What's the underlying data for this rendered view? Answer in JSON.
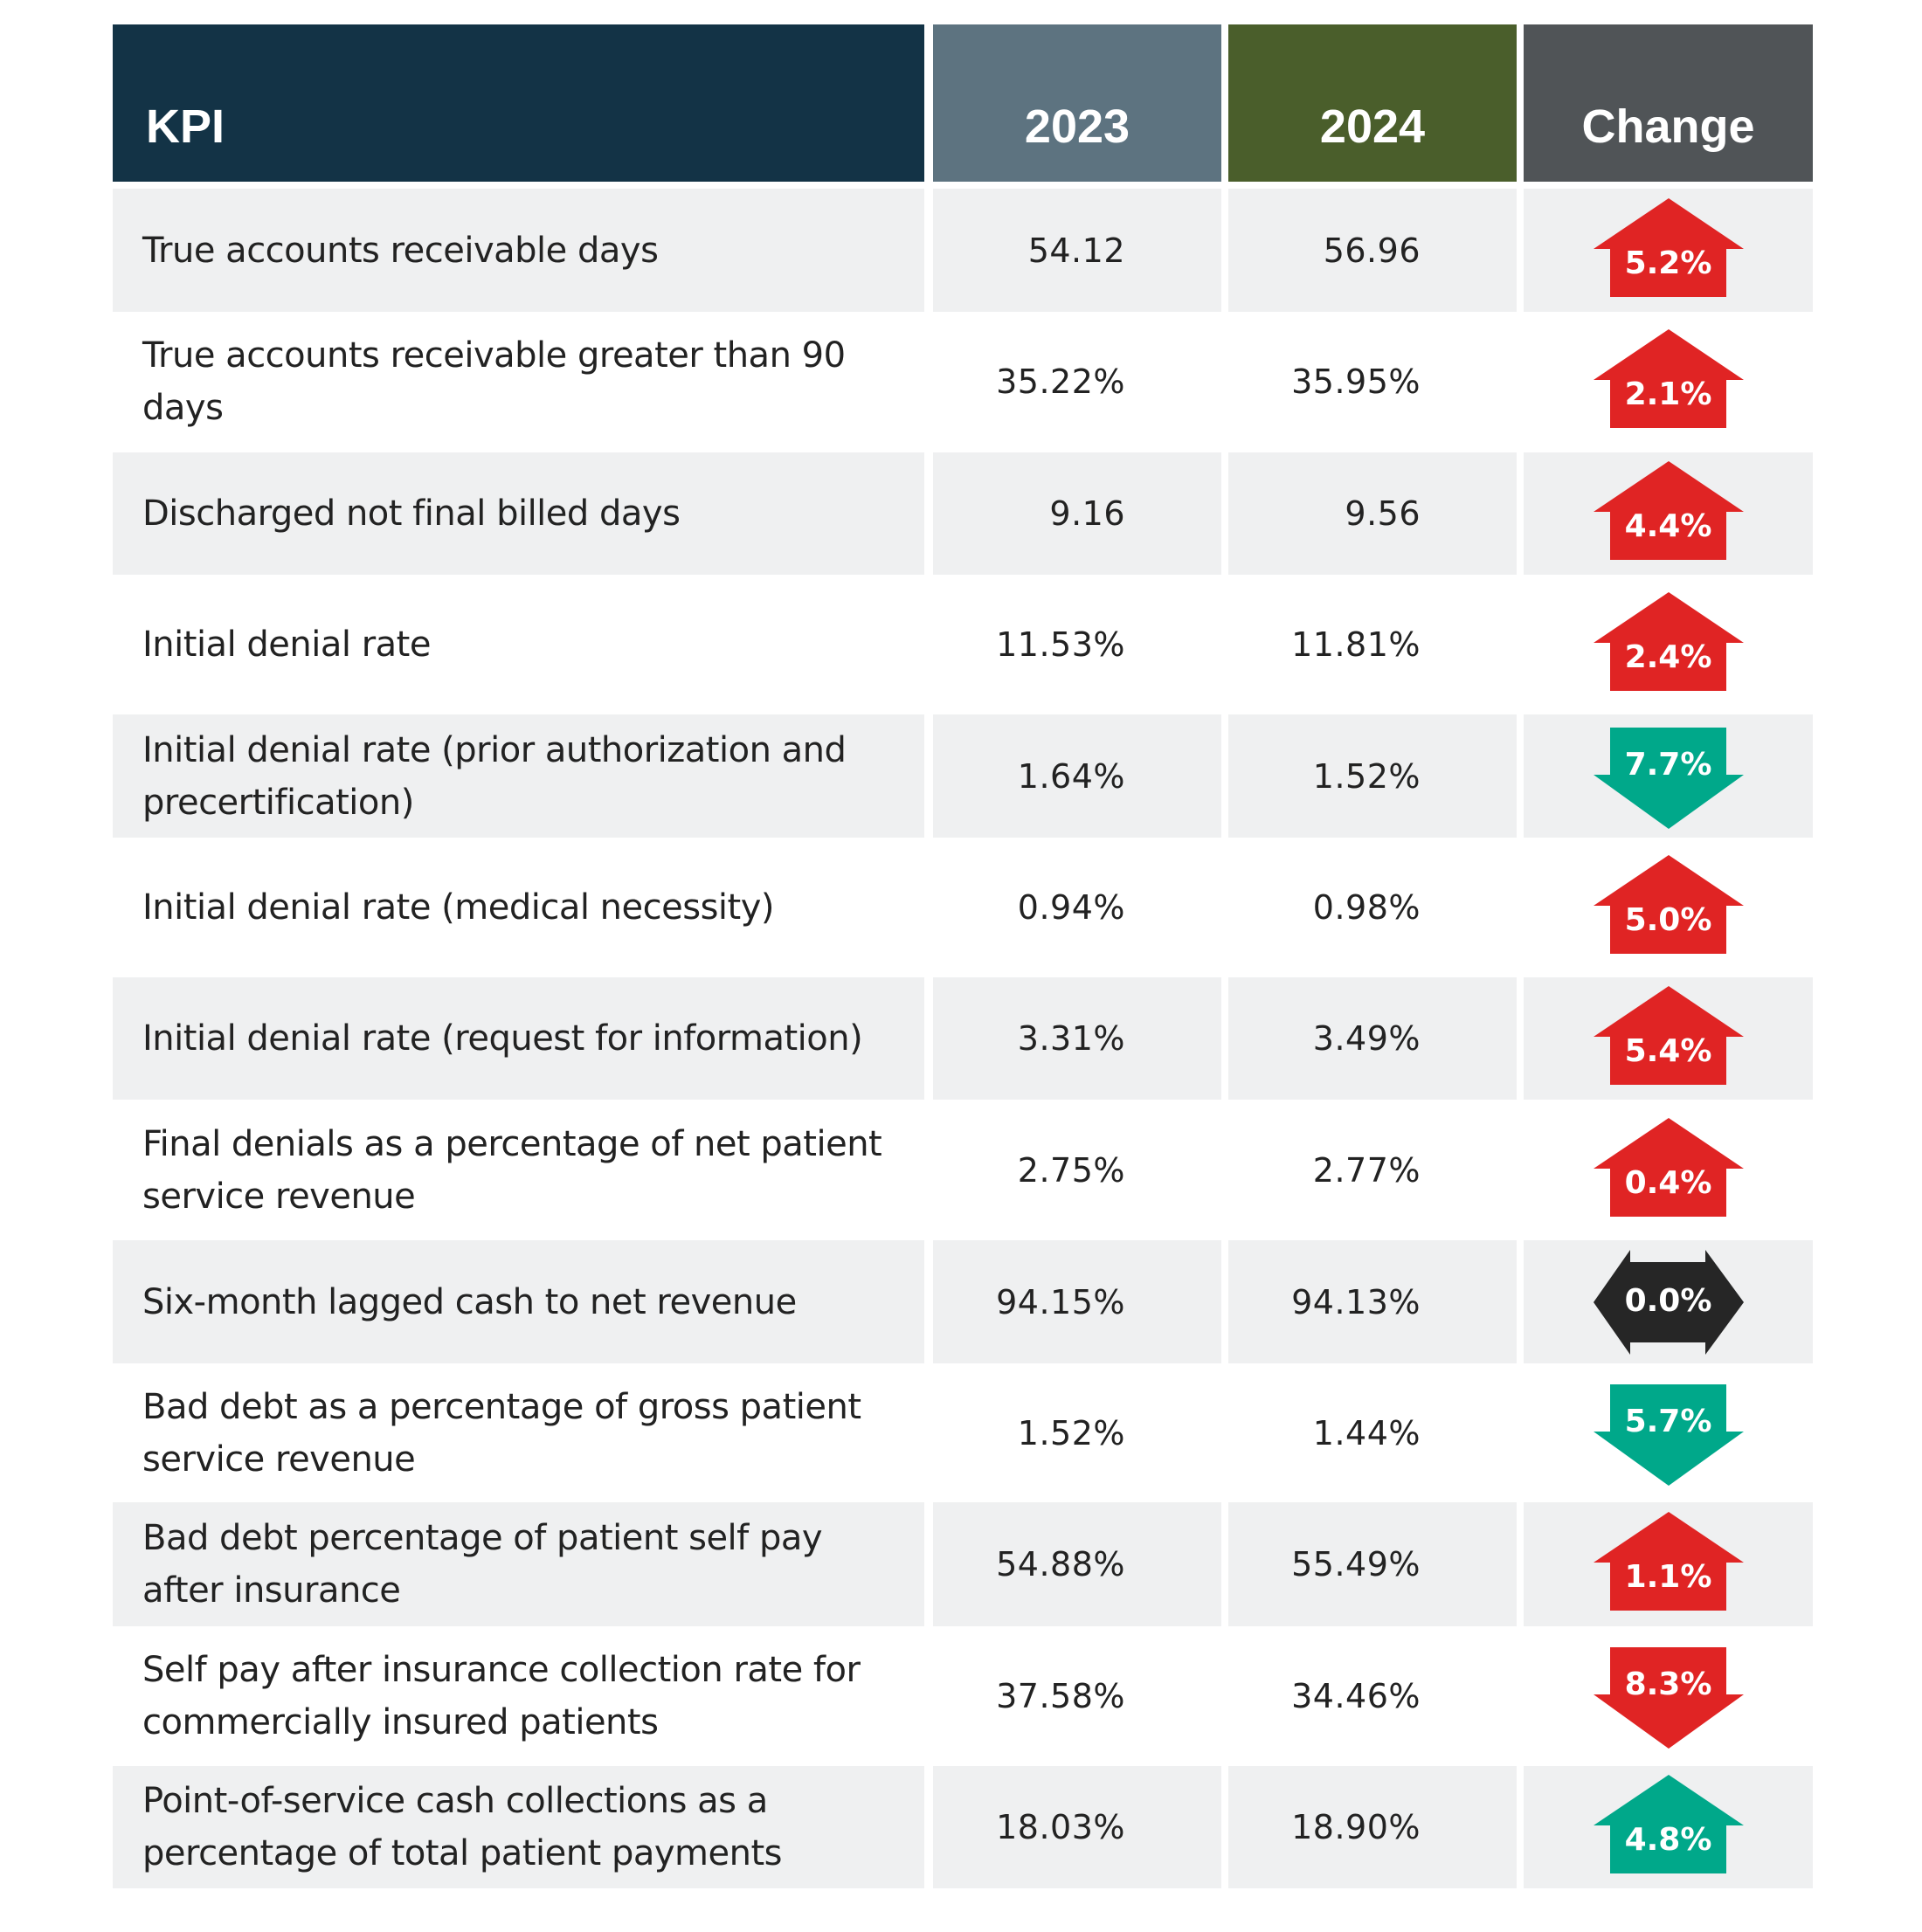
{
  "chart_data": {
    "type": "table",
    "title": "",
    "columns": [
      "KPI",
      "2023",
      "2024",
      "Change"
    ],
    "rows": [
      {
        "kpi": "True accounts receivable days",
        "v2023": "54.12",
        "v2024": "56.96",
        "change": "5.2%",
        "direction": "up",
        "sentiment": "bad"
      },
      {
        "kpi": "True accounts receivable greater than 90 days",
        "v2023": "35.22%",
        "v2024": "35.95%",
        "change": "2.1%",
        "direction": "up",
        "sentiment": "bad"
      },
      {
        "kpi": "Discharged not final billed days",
        "v2023": "9.16",
        "v2024": "9.56",
        "change": "4.4%",
        "direction": "up",
        "sentiment": "bad"
      },
      {
        "kpi": "Initial denial rate",
        "v2023": "11.53%",
        "v2024": "11.81%",
        "change": "2.4%",
        "direction": "up",
        "sentiment": "bad"
      },
      {
        "kpi": "Initial denial rate (prior authorization and precertification)",
        "v2023": "1.64%",
        "v2024": "1.52%",
        "change": "7.7%",
        "direction": "down",
        "sentiment": "good"
      },
      {
        "kpi": "Initial denial rate (medical necessity)",
        "v2023": "0.94%",
        "v2024": "0.98%",
        "change": "5.0%",
        "direction": "up",
        "sentiment": "bad"
      },
      {
        "kpi": "Initial denial rate (request for information)",
        "v2023": "3.31%",
        "v2024": "3.49%",
        "change": "5.4%",
        "direction": "up",
        "sentiment": "bad"
      },
      {
        "kpi": "Final denials as a percentage of net patient service revenue",
        "v2023": "2.75%",
        "v2024": "2.77%",
        "change": "0.4%",
        "direction": "up",
        "sentiment": "bad"
      },
      {
        "kpi": "Six-month lagged cash to net revenue",
        "v2023": "94.15%",
        "v2024": "94.13%",
        "change": "0.0%",
        "direction": "flat",
        "sentiment": "neutral"
      },
      {
        "kpi": "Bad debt as a percentage of gross patient service revenue",
        "v2023": "1.52%",
        "v2024": "1.44%",
        "change": "5.7%",
        "direction": "down",
        "sentiment": "good"
      },
      {
        "kpi": "Bad debt percentage of patient self pay after insurance",
        "v2023": "54.88%",
        "v2024": "55.49%",
        "change": "1.1%",
        "direction": "up",
        "sentiment": "bad"
      },
      {
        "kpi": "Self pay after insurance collection rate for commercially insured patients",
        "v2023": "37.58%",
        "v2024": "34.46%",
        "change": "8.3%",
        "direction": "down",
        "sentiment": "bad"
      },
      {
        "kpi": "Point-of-service cash collections as a percentage of total patient payments",
        "v2023": "18.03%",
        "v2024": "18.90%",
        "change": "4.8%",
        "direction": "up",
        "sentiment": "good"
      }
    ]
  },
  "header": {
    "kpi": "KPI",
    "y2023": "2023",
    "y2024": "2024",
    "change": "Change"
  },
  "colors": {
    "header_kpi": "#133346",
    "header_2023": "#5d7380",
    "header_2024": "#4a5e2b",
    "header_change": "#505457",
    "row_shade": "#eff0f1",
    "bad": "#e02424",
    "good": "#00a88a",
    "neutral": "#262626"
  }
}
